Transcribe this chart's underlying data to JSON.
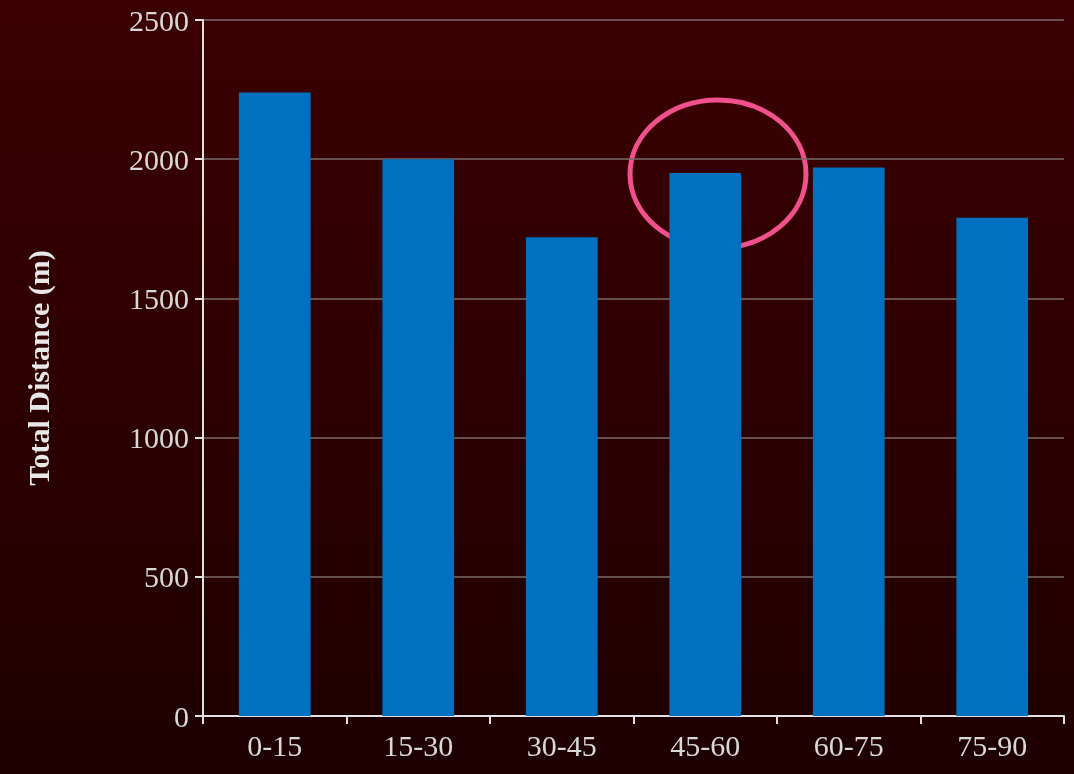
{
  "chart_data": {
    "type": "bar",
    "ylabel": "Total Distance (m)",
    "categories": [
      "0-15",
      "15-30",
      "30-45",
      "45-60",
      "60-75",
      "75-90"
    ],
    "values": [
      2240,
      2000,
      1720,
      1950,
      1970,
      1790
    ],
    "color": "#0070c0",
    "ylim": [
      0,
      2500
    ],
    "yticks": [
      0,
      500,
      1000,
      1500,
      2000,
      2500
    ],
    "grid": "y"
  }
}
